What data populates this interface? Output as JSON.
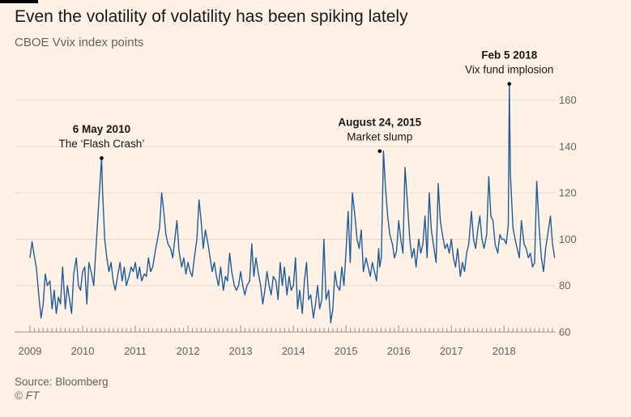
{
  "header": {
    "title": "Even the volatility of volatility has been spiking lately",
    "subtitle": "CBOE Vvix index points"
  },
  "footer": {
    "source": "Source: Bloomberg",
    "copyright": "© FT"
  },
  "colors": {
    "background": "#fff1e5",
    "line": "#1f5c99",
    "grid": "#e6d9ce",
    "text": "#66605c"
  },
  "chart_data": {
    "type": "line",
    "title": "Even the volatility of volatility has been spiking lately",
    "subtitle": "CBOE Vvix index points",
    "xlabel": "",
    "ylabel": "",
    "xlim": [
      2009.0,
      2018.98
    ],
    "ylim": [
      60,
      170
    ],
    "y_ticks": [
      60,
      80,
      100,
      120,
      140,
      160
    ],
    "x_ticks": [
      "2009",
      "2010",
      "2011",
      "2012",
      "2013",
      "2014",
      "2015",
      "2016",
      "2017",
      "2018"
    ],
    "grid": "horizontal",
    "y_axis_side": "right",
    "series": [
      {
        "x": [
          2009.0,
          2009.04,
          2009.08,
          2009.12,
          2009.17,
          2009.21,
          2009.25,
          2009.29,
          2009.33,
          2009.38,
          2009.42,
          2009.46,
          2009.5,
          2009.54,
          2009.58,
          2009.62,
          2009.67,
          2009.71,
          2009.75,
          2009.79,
          2009.83,
          2009.88,
          2009.92,
          2009.96,
          2010.0,
          2010.04,
          2010.08,
          2010.12,
          2010.17,
          2010.21,
          2010.25,
          2010.29,
          2010.34,
          2010.36,
          2010.38,
          2010.42,
          2010.46,
          2010.5,
          2010.54,
          2010.58,
          2010.62,
          2010.67,
          2010.71,
          2010.75,
          2010.79,
          2010.83,
          2010.88,
          2010.92,
          2010.96,
          2011.0,
          2011.04,
          2011.08,
          2011.12,
          2011.17,
          2011.21,
          2011.25,
          2011.29,
          2011.33,
          2011.38,
          2011.42,
          2011.46,
          2011.5,
          2011.54,
          2011.58,
          2011.62,
          2011.67,
          2011.71,
          2011.75,
          2011.79,
          2011.83,
          2011.88,
          2011.92,
          2011.96,
          2012.0,
          2012.04,
          2012.08,
          2012.12,
          2012.17,
          2012.21,
          2012.25,
          2012.29,
          2012.33,
          2012.38,
          2012.42,
          2012.46,
          2012.5,
          2012.54,
          2012.58,
          2012.62,
          2012.67,
          2012.71,
          2012.75,
          2012.79,
          2012.83,
          2012.88,
          2012.92,
          2012.96,
          2013.0,
          2013.04,
          2013.08,
          2013.12,
          2013.17,
          2013.21,
          2013.25,
          2013.29,
          2013.33,
          2013.38,
          2013.42,
          2013.46,
          2013.5,
          2013.54,
          2013.58,
          2013.62,
          2013.67,
          2013.71,
          2013.75,
          2013.79,
          2013.83,
          2013.88,
          2013.92,
          2013.96,
          2014.0,
          2014.04,
          2014.08,
          2014.12,
          2014.17,
          2014.21,
          2014.25,
          2014.29,
          2014.33,
          2014.38,
          2014.42,
          2014.46,
          2014.5,
          2014.54,
          2014.58,
          2014.62,
          2014.67,
          2014.71,
          2014.75,
          2014.79,
          2014.83,
          2014.88,
          2014.92,
          2014.96,
          2015.0,
          2015.04,
          2015.08,
          2015.12,
          2015.17,
          2015.21,
          2015.25,
          2015.29,
          2015.33,
          2015.38,
          2015.42,
          2015.46,
          2015.5,
          2015.54,
          2015.58,
          2015.62,
          2015.64,
          2015.67,
          2015.71,
          2015.75,
          2015.79,
          2015.83,
          2015.88,
          2015.92,
          2015.96,
          2016.0,
          2016.04,
          2016.08,
          2016.12,
          2016.17,
          2016.21,
          2016.25,
          2016.29,
          2016.33,
          2016.38,
          2016.42,
          2016.46,
          2016.5,
          2016.54,
          2016.58,
          2016.62,
          2016.67,
          2016.71,
          2016.75,
          2016.79,
          2016.83,
          2016.88,
          2016.92,
          2016.96,
          2017.0,
          2017.04,
          2017.08,
          2017.12,
          2017.17,
          2017.21,
          2017.25,
          2017.29,
          2017.33,
          2017.38,
          2017.42,
          2017.46,
          2017.5,
          2017.54,
          2017.58,
          2017.62,
          2017.67,
          2017.71,
          2017.75,
          2017.79,
          2017.83,
          2017.88,
          2017.92,
          2017.96,
          2018.0,
          2018.04,
          2018.08,
          2018.1,
          2018.12,
          2018.17,
          2018.21,
          2018.25,
          2018.29,
          2018.33,
          2018.38,
          2018.42,
          2018.46,
          2018.5,
          2018.54,
          2018.58,
          2018.62,
          2018.67,
          2018.71,
          2018.75,
          2018.79,
          2018.83,
          2018.88,
          2018.92,
          2018.96
        ],
        "y": [
          92,
          99,
          93,
          88,
          75,
          66,
          72,
          85,
          80,
          82,
          70,
          78,
          68,
          75,
          72,
          88,
          70,
          80,
          74,
          68,
          85,
          92,
          80,
          78,
          86,
          88,
          72,
          90,
          85,
          80,
          95,
          110,
          128,
          135,
          120,
          100,
          92,
          86,
          90,
          82,
          78,
          85,
          90,
          82,
          88,
          80,
          84,
          88,
          86,
          90,
          83,
          88,
          82,
          85,
          84,
          92,
          86,
          88,
          95,
          100,
          105,
          120,
          112,
          102,
          98,
          96,
          92,
          100,
          108,
          95,
          88,
          92,
          85,
          90,
          86,
          84,
          92,
          100,
          117,
          108,
          96,
          104,
          98,
          92,
          86,
          90,
          84,
          80,
          88,
          78,
          84,
          82,
          94,
          86,
          80,
          78,
          80,
          86,
          80,
          76,
          80,
          82,
          98,
          84,
          92,
          86,
          80,
          72,
          78,
          86,
          80,
          76,
          84,
          82,
          74,
          90,
          80,
          88,
          76,
          84,
          78,
          80,
          92,
          70,
          78,
          68,
          82,
          90,
          74,
          76,
          66,
          72,
          80,
          70,
          74,
          100,
          74,
          78,
          64,
          70,
          86,
          80,
          78,
          88,
          80,
          95,
          112,
          90,
          120,
          110,
          100,
          96,
          104,
          86,
          92,
          88,
          84,
          90,
          86,
          82,
          96,
          88,
          92,
          138,
          122,
          110,
          102,
          98,
          92,
          95,
          108,
          100,
          94,
          131,
          114,
          100,
          92,
          96,
          88,
          100,
          94,
          98,
          110,
          92,
          120,
          104,
          96,
          90,
          124,
          108,
          102,
          96,
          98,
          94,
          100,
          92,
          88,
          96,
          84,
          90,
          86,
          94,
          98,
          112,
          100,
          96,
          104,
          110,
          100,
          96,
          102,
          127,
          110,
          108,
          98,
          94,
          102,
          100,
          100,
          98,
          106,
          167,
          128,
          105,
          100,
          96,
          92,
          108,
          98,
          96,
          92,
          94,
          88,
          90,
          125,
          104,
          92,
          86,
          96,
          102,
          110,
          98,
          92
        ]
      }
    ],
    "annotations": [
      {
        "x": 2010.36,
        "y": 135,
        "heading": "6 May 2010",
        "text": "The ‘Flash Crash’"
      },
      {
        "x": 2015.64,
        "y": 138,
        "heading": "August 24, 2015",
        "text": "Market slump"
      },
      {
        "x": 2018.1,
        "y": 167,
        "heading": "Feb 5 2018",
        "text": "Vix fund implosion"
      }
    ]
  }
}
